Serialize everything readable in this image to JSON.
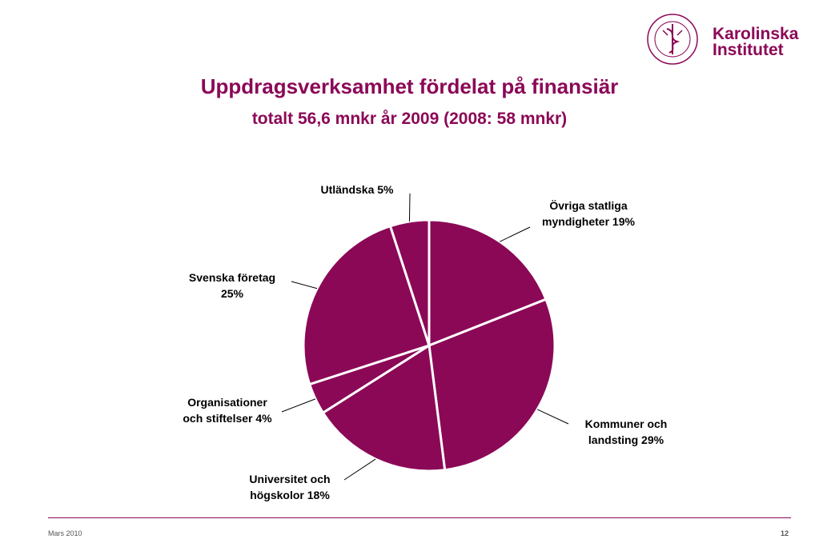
{
  "logo": {
    "line1": "Karolinska",
    "line2": "Institutet",
    "seal_text": "KAROLINSKA INSTITUTET ANNO 1810"
  },
  "title": "Uppdragsverksamhet fördelat på finansiär",
  "subtitle": "totalt 56,6 mnkr år 2009 (2008: 58 mnkr)",
  "chart_data": {
    "type": "pie",
    "color": "#8b0857",
    "slices": [
      {
        "label_lines": [
          "Övriga statliga",
          "myndigheter 19%"
        ],
        "value": 19
      },
      {
        "label_lines": [
          "Kommuner och",
          "landsting 29%"
        ],
        "value": 29
      },
      {
        "label_lines": [
          "Universitet och",
          "högskolor 18%"
        ],
        "value": 18
      },
      {
        "label_lines": [
          "Organisationer",
          "och stiftelser 4%"
        ],
        "value": 4
      },
      {
        "label_lines": [
          "Svenska företag",
          "25%"
        ],
        "value": 25
      },
      {
        "label_lines": [
          "Utländska 5%"
        ],
        "value": 5
      }
    ]
  },
  "footer": {
    "date": "Mars 2010",
    "page": "12"
  }
}
